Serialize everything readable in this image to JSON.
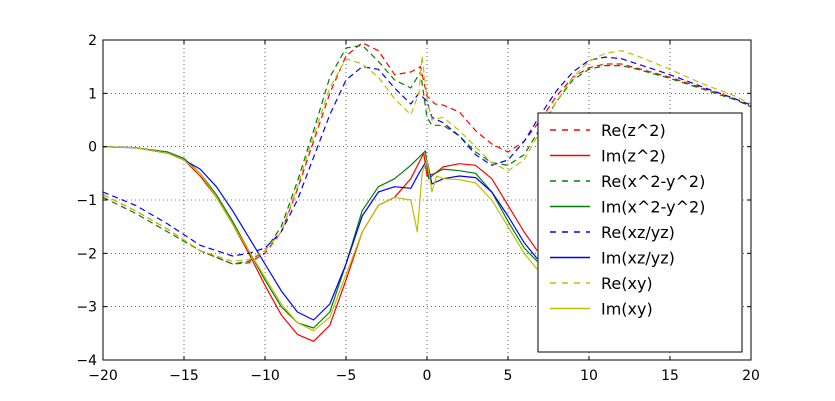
{
  "chart_data": {
    "type": "line",
    "xlim": [
      -20,
      20
    ],
    "ylim": [
      -4,
      2
    ],
    "xticks": [
      -20,
      -15,
      -10,
      -5,
      0,
      5,
      10,
      15,
      20
    ],
    "yticks": [
      -4,
      -3,
      -2,
      -1,
      0,
      1,
      2
    ],
    "xtick_labels": [
      "−20",
      "−15",
      "−10",
      "−5",
      "0",
      "5",
      "10",
      "15",
      "20"
    ],
    "ytick_labels": [
      "−4",
      "−3",
      "−2",
      "−1",
      "0",
      "1",
      "2"
    ],
    "grid": true,
    "legend_position": "right",
    "series": [
      {
        "name": "Re(z^2)",
        "color": "#ff0000",
        "dash": true,
        "points": [
          [
            -20,
            -0.9
          ],
          [
            -18,
            -1.2
          ],
          [
            -16,
            -1.55
          ],
          [
            -14,
            -1.95
          ],
          [
            -12,
            -2.2
          ],
          [
            -11,
            -2.18
          ],
          [
            -10,
            -2.0
          ],
          [
            -9,
            -1.6
          ],
          [
            -8,
            -0.8
          ],
          [
            -7,
            0.1
          ],
          [
            -6,
            1.0
          ],
          [
            -5,
            1.7
          ],
          [
            -4,
            1.95
          ],
          [
            -3,
            1.8
          ],
          [
            -2,
            1.35
          ],
          [
            -1,
            1.4
          ],
          [
            -0.4,
            1.5
          ],
          [
            0,
            0.95
          ],
          [
            0.5,
            0.8
          ],
          [
            1,
            0.78
          ],
          [
            2,
            0.65
          ],
          [
            3,
            0.3
          ],
          [
            4,
            0.05
          ],
          [
            5,
            -0.1
          ],
          [
            6,
            0.1
          ],
          [
            7,
            0.5
          ],
          [
            8,
            0.95
          ],
          [
            9,
            1.3
          ],
          [
            10,
            1.48
          ],
          [
            11,
            1.55
          ],
          [
            12,
            1.55
          ],
          [
            13,
            1.47
          ],
          [
            15,
            1.3
          ],
          [
            17,
            1.1
          ],
          [
            19,
            0.9
          ],
          [
            20,
            0.75
          ]
        ]
      },
      {
        "name": "Im(z^2)",
        "color": "#ff0000",
        "dash": false,
        "points": [
          [
            -20,
            0.0
          ],
          [
            -18,
            -0.02
          ],
          [
            -16,
            -0.12
          ],
          [
            -15,
            -0.25
          ],
          [
            -14,
            -0.55
          ],
          [
            -13,
            -0.95
          ],
          [
            -12,
            -1.45
          ],
          [
            -11,
            -2.0
          ],
          [
            -10,
            -2.6
          ],
          [
            -9,
            -3.15
          ],
          [
            -8,
            -3.52
          ],
          [
            -7,
            -3.65
          ],
          [
            -6,
            -3.35
          ],
          [
            -5,
            -2.5
          ],
          [
            -4,
            -1.6
          ],
          [
            -3,
            -1.1
          ],
          [
            -2,
            -0.95
          ],
          [
            -1,
            -0.6
          ],
          [
            -0.2,
            -0.12
          ],
          [
            0,
            -0.55
          ],
          [
            0.5,
            -0.5
          ],
          [
            1,
            -0.38
          ],
          [
            2,
            -0.32
          ],
          [
            3,
            -0.35
          ],
          [
            4,
            -0.6
          ],
          [
            5,
            -1.1
          ],
          [
            6,
            -1.6
          ],
          [
            6.8,
            -1.95
          ]
        ]
      },
      {
        "name": "Re(x^2-y^2)",
        "color": "#008000",
        "dash": true,
        "points": [
          [
            -20,
            -0.95
          ],
          [
            -18,
            -1.25
          ],
          [
            -16,
            -1.6
          ],
          [
            -14,
            -1.95
          ],
          [
            -12,
            -2.2
          ],
          [
            -11,
            -2.15
          ],
          [
            -10,
            -1.95
          ],
          [
            -9,
            -1.5
          ],
          [
            -8,
            -0.65
          ],
          [
            -7,
            0.3
          ],
          [
            -6,
            1.3
          ],
          [
            -5,
            1.85
          ],
          [
            -4,
            1.9
          ],
          [
            -3,
            1.6
          ],
          [
            -2,
            1.25
          ],
          [
            -1,
            1.1
          ],
          [
            -0.4,
            1.4
          ],
          [
            0,
            0.55
          ],
          [
            0.3,
            0.4
          ],
          [
            1,
            0.4
          ],
          [
            2,
            0.2
          ],
          [
            3,
            -0.1
          ],
          [
            4,
            -0.3
          ],
          [
            5,
            -0.35
          ],
          [
            6,
            -0.15
          ],
          [
            7,
            0.35
          ],
          [
            8,
            0.85
          ],
          [
            9,
            1.25
          ],
          [
            10,
            1.45
          ],
          [
            11,
            1.52
          ],
          [
            12,
            1.52
          ],
          [
            13,
            1.45
          ],
          [
            15,
            1.28
          ],
          [
            17,
            1.08
          ],
          [
            19,
            0.88
          ],
          [
            20,
            0.75
          ]
        ]
      },
      {
        "name": "Im(x^2-y^2)",
        "color": "#008000",
        "dash": false,
        "points": [
          [
            -20,
            0.0
          ],
          [
            -18,
            -0.02
          ],
          [
            -16,
            -0.1
          ],
          [
            -15,
            -0.22
          ],
          [
            -14,
            -0.5
          ],
          [
            -13,
            -0.9
          ],
          [
            -12,
            -1.4
          ],
          [
            -11,
            -1.95
          ],
          [
            -10,
            -2.5
          ],
          [
            -9,
            -3.0
          ],
          [
            -8,
            -3.3
          ],
          [
            -7,
            -3.4
          ],
          [
            -6,
            -3.1
          ],
          [
            -5,
            -2.2
          ],
          [
            -4,
            -1.2
          ],
          [
            -3,
            -0.75
          ],
          [
            -2,
            -0.6
          ],
          [
            -1,
            -0.35
          ],
          [
            -0.1,
            -0.08
          ],
          [
            0.1,
            -0.6
          ],
          [
            0.5,
            -0.5
          ],
          [
            1,
            -0.42
          ],
          [
            2,
            -0.45
          ],
          [
            3,
            -0.5
          ],
          [
            4,
            -0.85
          ],
          [
            5,
            -1.4
          ],
          [
            6,
            -1.9
          ],
          [
            6.8,
            -2.15
          ]
        ]
      },
      {
        "name": "Re(xz/yz)",
        "color": "#0000ff",
        "dash": true,
        "points": [
          [
            -20,
            -0.85
          ],
          [
            -18,
            -1.1
          ],
          [
            -16,
            -1.45
          ],
          [
            -14,
            -1.85
          ],
          [
            -12,
            -2.05
          ],
          [
            -11,
            -2.0
          ],
          [
            -10,
            -1.9
          ],
          [
            -9,
            -1.6
          ],
          [
            -8,
            -1.0
          ],
          [
            -7,
            -0.2
          ],
          [
            -6,
            0.6
          ],
          [
            -5,
            1.25
          ],
          [
            -4,
            1.5
          ],
          [
            -3,
            1.45
          ],
          [
            -2,
            1.1
          ],
          [
            -1,
            0.8
          ],
          [
            -0.5,
            1.0
          ],
          [
            0,
            0.85
          ],
          [
            0.3,
            0.55
          ],
          [
            1,
            0.45
          ],
          [
            2,
            0.2
          ],
          [
            3,
            -0.15
          ],
          [
            4,
            -0.35
          ],
          [
            5,
            -0.25
          ],
          [
            6,
            0.1
          ],
          [
            7,
            0.6
          ],
          [
            8,
            1.05
          ],
          [
            9,
            1.4
          ],
          [
            10,
            1.62
          ],
          [
            11,
            1.68
          ],
          [
            12,
            1.65
          ],
          [
            13,
            1.55
          ],
          [
            15,
            1.35
          ],
          [
            17,
            1.12
          ],
          [
            19,
            0.9
          ],
          [
            20,
            0.78
          ]
        ]
      },
      {
        "name": "Im(xz/yz)",
        "color": "#0000ff",
        "dash": false,
        "points": [
          [
            -20,
            0.0
          ],
          [
            -18,
            -0.02
          ],
          [
            -16,
            -0.12
          ],
          [
            -15,
            -0.25
          ],
          [
            -14,
            -0.42
          ],
          [
            -13,
            -0.75
          ],
          [
            -12,
            -1.2
          ],
          [
            -11,
            -1.7
          ],
          [
            -10,
            -2.2
          ],
          [
            -9,
            -2.7
          ],
          [
            -8,
            -3.1
          ],
          [
            -7,
            -3.25
          ],
          [
            -6,
            -2.95
          ],
          [
            -5,
            -2.2
          ],
          [
            -4,
            -1.3
          ],
          [
            -3,
            -0.85
          ],
          [
            -2,
            -0.75
          ],
          [
            -1,
            -0.78
          ],
          [
            -0.5,
            -0.5
          ],
          [
            0,
            -0.25
          ],
          [
            0.3,
            -0.7
          ],
          [
            1,
            -0.6
          ],
          [
            2,
            -0.55
          ],
          [
            3,
            -0.58
          ],
          [
            4,
            -0.85
          ],
          [
            5,
            -1.3
          ],
          [
            6,
            -1.8
          ],
          [
            6.8,
            -2.1
          ]
        ]
      },
      {
        "name": "Re(xy)",
        "color": "#bfbf00",
        "dash": true,
        "points": [
          [
            -20,
            -0.9
          ],
          [
            -18,
            -1.2
          ],
          [
            -16,
            -1.55
          ],
          [
            -14,
            -1.95
          ],
          [
            -12,
            -2.15
          ],
          [
            -11,
            -2.12
          ],
          [
            -10,
            -1.95
          ],
          [
            -9,
            -1.6
          ],
          [
            -8,
            -0.75
          ],
          [
            -7,
            0.2
          ],
          [
            -6,
            1.1
          ],
          [
            -5,
            1.65
          ],
          [
            -4,
            1.55
          ],
          [
            -3,
            1.3
          ],
          [
            -2,
            0.9
          ],
          [
            -1,
            0.6
          ],
          [
            -0.5,
            1.0
          ],
          [
            -0.3,
            1.7
          ],
          [
            0,
            0.9
          ],
          [
            0.3,
            0.5
          ],
          [
            1,
            0.55
          ],
          [
            2,
            0.3
          ],
          [
            3,
            0.0
          ],
          [
            4,
            -0.3
          ],
          [
            5,
            -0.45
          ],
          [
            6,
            -0.25
          ],
          [
            7,
            0.3
          ],
          [
            8,
            0.85
          ],
          [
            9,
            1.3
          ],
          [
            10,
            1.6
          ],
          [
            11,
            1.75
          ],
          [
            12,
            1.8
          ],
          [
            13,
            1.7
          ],
          [
            15,
            1.45
          ],
          [
            17,
            1.18
          ],
          [
            19,
            0.95
          ],
          [
            20,
            0.8
          ]
        ]
      },
      {
        "name": "Im(xy)",
        "color": "#bfbf00",
        "dash": false,
        "points": [
          [
            -20,
            0.0
          ],
          [
            -18,
            -0.02
          ],
          [
            -16,
            -0.12
          ],
          [
            -15,
            -0.25
          ],
          [
            -14,
            -0.5
          ],
          [
            -13,
            -0.95
          ],
          [
            -12,
            -1.45
          ],
          [
            -11,
            -1.95
          ],
          [
            -10,
            -2.45
          ],
          [
            -9,
            -2.95
          ],
          [
            -8,
            -3.3
          ],
          [
            -7,
            -3.45
          ],
          [
            -6,
            -3.2
          ],
          [
            -5,
            -2.4
          ],
          [
            -4,
            -1.6
          ],
          [
            -3,
            -1.1
          ],
          [
            -2,
            -0.95
          ],
          [
            -1,
            -1.0
          ],
          [
            -0.6,
            -1.6
          ],
          [
            -0.3,
            -0.5
          ],
          [
            0,
            -0.25
          ],
          [
            0.3,
            -0.85
          ],
          [
            0.6,
            -0.55
          ],
          [
            1,
            -0.6
          ],
          [
            2,
            -0.62
          ],
          [
            3,
            -0.68
          ],
          [
            4,
            -1.0
          ],
          [
            5,
            -1.5
          ],
          [
            6,
            -2.0
          ],
          [
            6.8,
            -2.3
          ]
        ]
      }
    ]
  }
}
